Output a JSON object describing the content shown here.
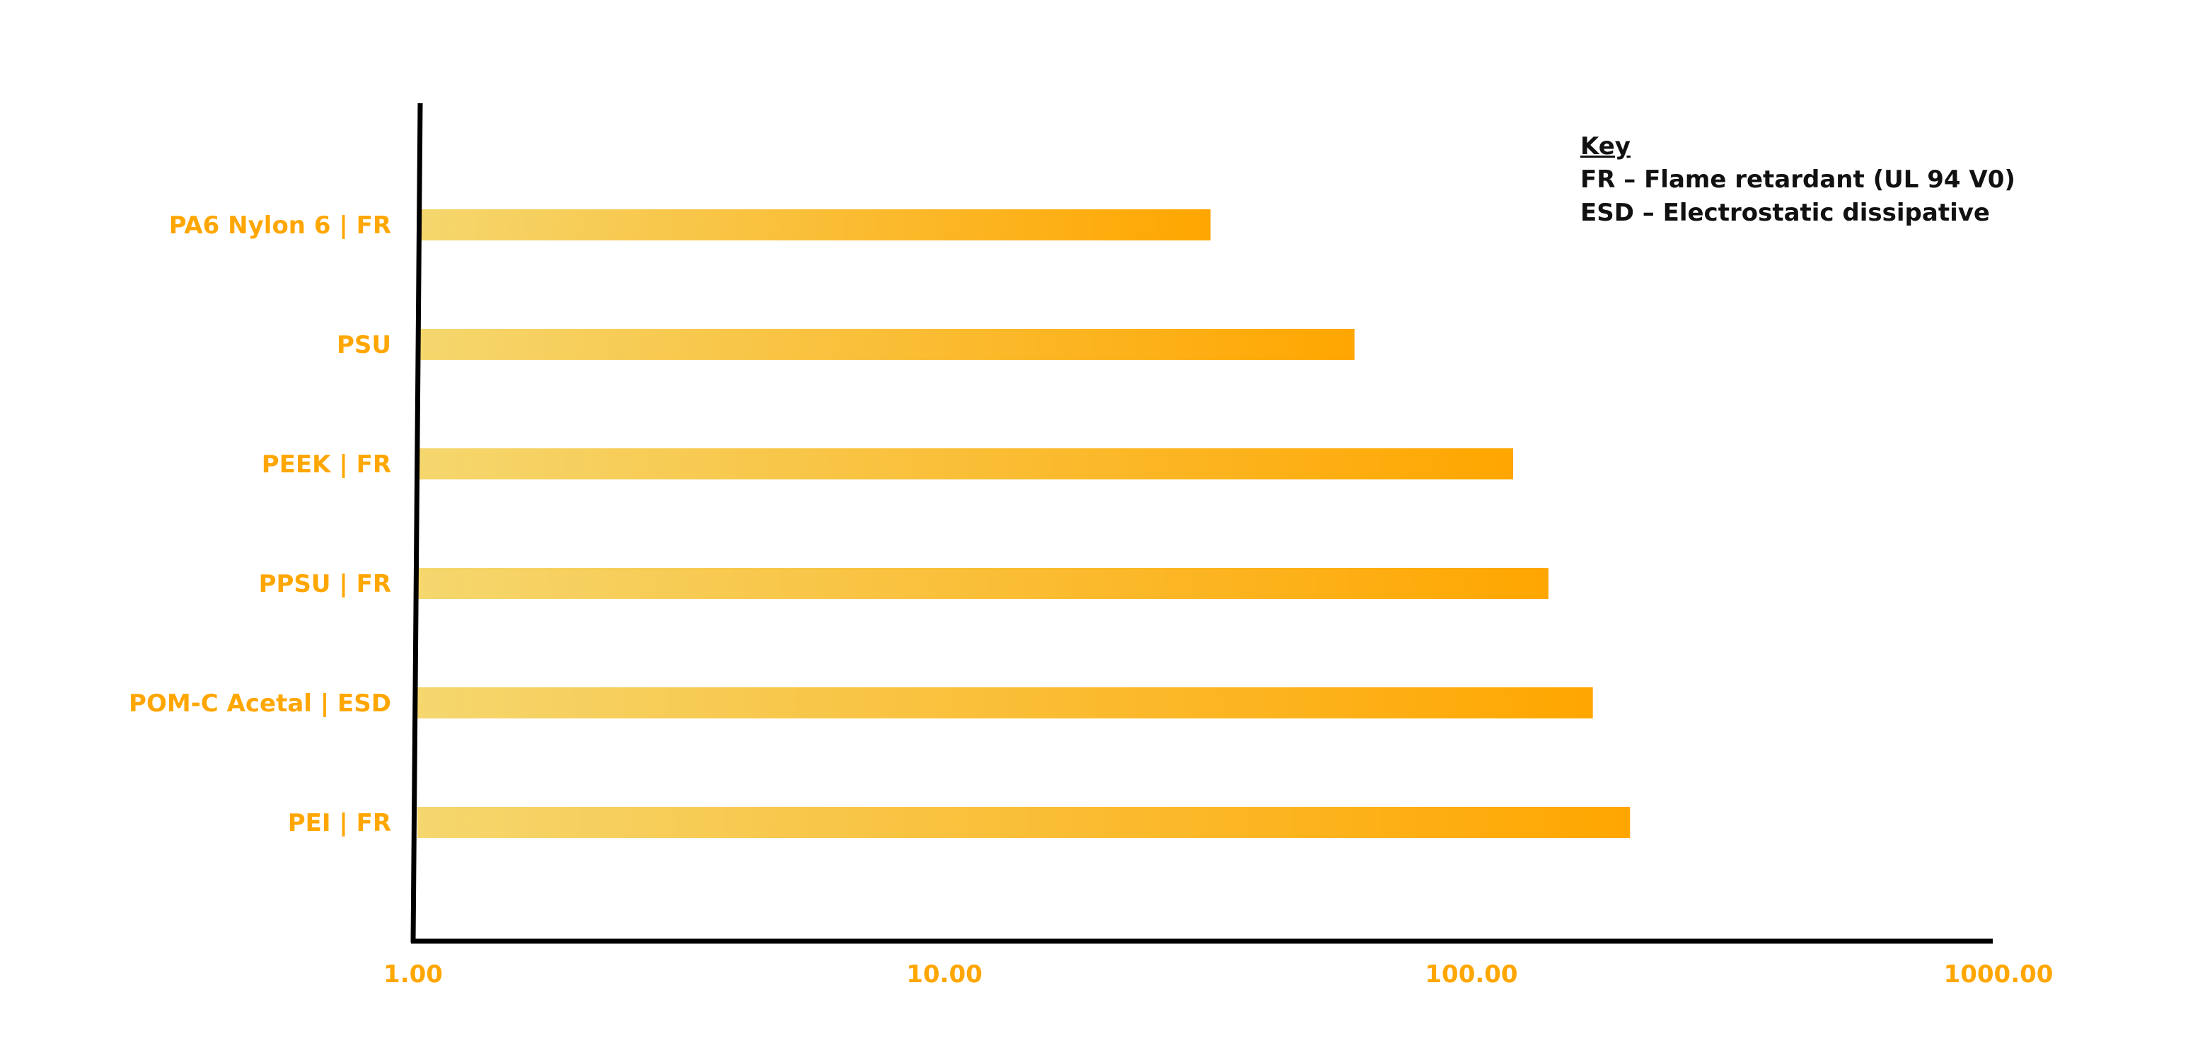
{
  "chart_data": {
    "type": "bar",
    "orientation": "horizontal",
    "x_scale": "log",
    "xlim": [
      1,
      1000
    ],
    "categories": [
      "PA6 Nylon 6 | FR",
      "PSU",
      "PEEK | FR",
      "PPSU | FR",
      "POM-C Acetal | ESD",
      "PEI | FR"
    ],
    "values": [
      32,
      60,
      120,
      140,
      170,
      200
    ],
    "x_ticks": [
      "1.00",
      "10.00",
      "100.00",
      "1000.00"
    ],
    "x_tick_values": [
      1,
      10,
      100,
      1000
    ],
    "grid": false,
    "legend": "none",
    "bar_gradient": {
      "start": "#f5d76e",
      "end": "#ffa600"
    },
    "label_color": "#ffa600",
    "axis_color": "#000000"
  },
  "key": {
    "title": "Key",
    "items": [
      "FR – Flame retardant (UL 94 V0)",
      "ESD – Electrostatic dissipative"
    ]
  }
}
